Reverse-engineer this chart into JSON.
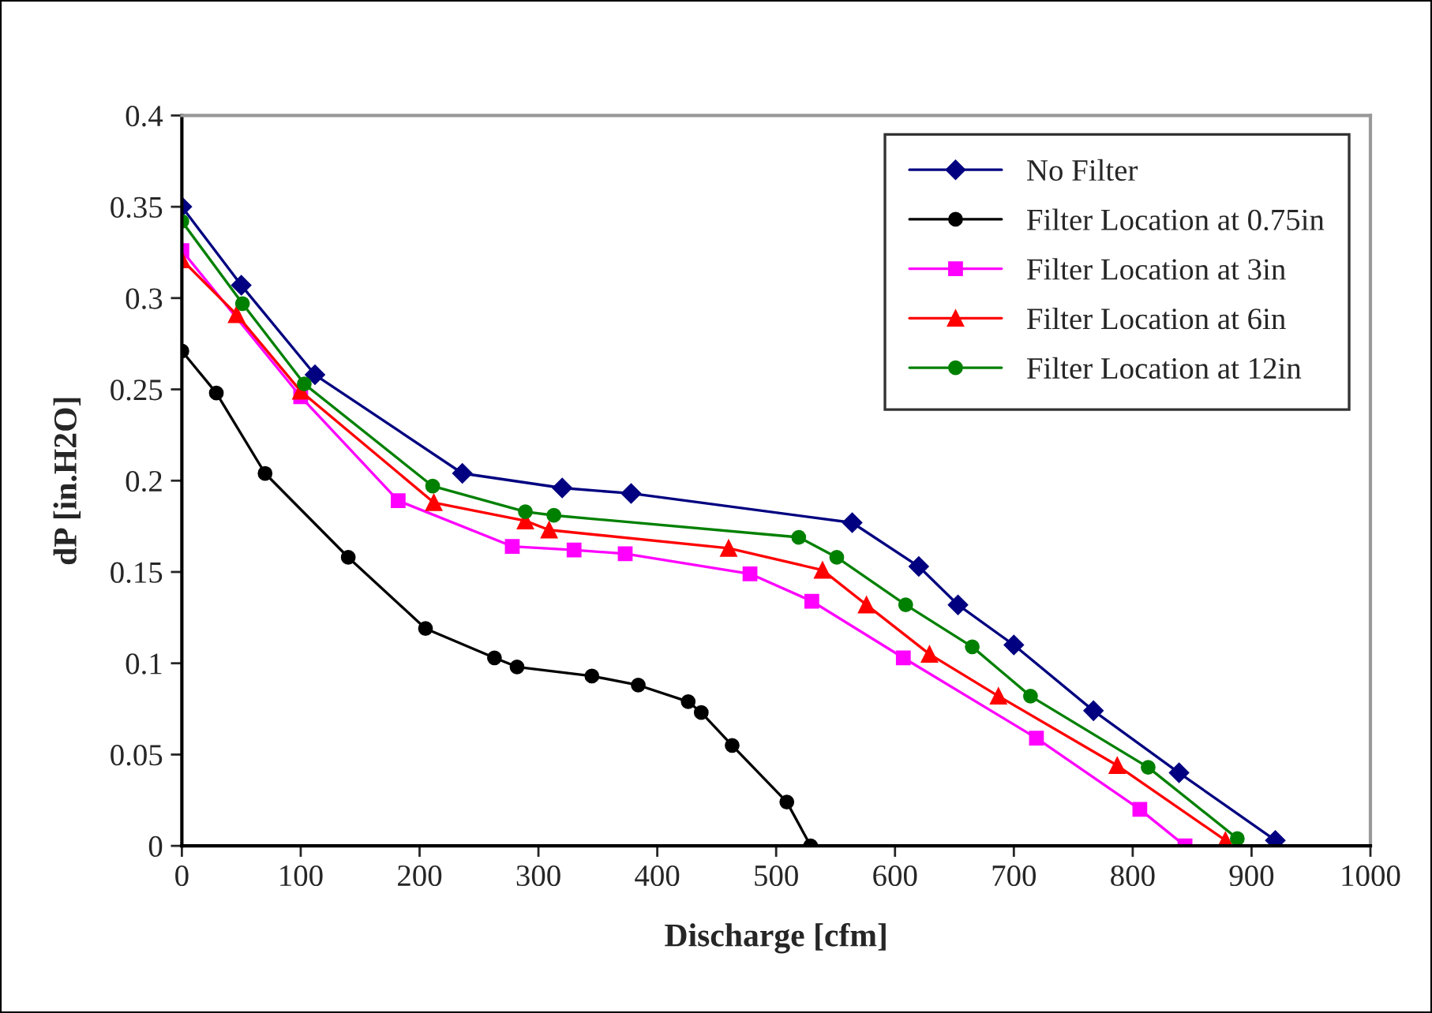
{
  "chart_data": {
    "type": "line",
    "xlabel": "Discharge [cfm]",
    "ylabel": "dP [in.H2O]",
    "xlim": [
      0,
      1000
    ],
    "xticks": [
      0,
      100,
      200,
      300,
      400,
      500,
      600,
      700,
      800,
      900,
      1000
    ],
    "ylim": [
      0,
      0.4
    ],
    "yticks": [
      0,
      0.05,
      0.1,
      0.15,
      0.2,
      0.25,
      0.3,
      0.35,
      0.4
    ],
    "grid": false,
    "legend": "top right",
    "line_style": "solid",
    "series": [
      {
        "name": "No Filter",
        "color": "#000080",
        "marker": "diamond",
        "x": [
          0,
          50,
          112,
          236,
          320,
          378,
          564,
          620,
          653,
          700,
          767,
          839,
          920
        ],
        "values": [
          0.35,
          0.307,
          0.258,
          0.204,
          0.196,
          0.193,
          0.177,
          0.153,
          0.132,
          0.11,
          0.074,
          0.04,
          0.003
        ]
      },
      {
        "name": "Filter Location at 0.75in",
        "color": "#000000",
        "marker": "circle",
        "x": [
          0,
          29,
          70,
          140,
          205,
          263,
          282,
          345,
          384,
          426,
          437,
          463,
          509,
          529
        ],
        "values": [
          0.271,
          0.248,
          0.204,
          0.158,
          0.119,
          0.103,
          0.098,
          0.093,
          0.088,
          0.079,
          0.073,
          0.055,
          0.024,
          0
        ]
      },
      {
        "name": "Filter Location at 3in",
        "color": "#ff00ff",
        "marker": "square",
        "x": [
          0,
          100,
          182,
          278,
          330,
          373,
          478,
          530,
          607,
          719,
          806,
          844
        ],
        "values": [
          0.326,
          0.246,
          0.189,
          0.164,
          0.162,
          0.16,
          0.149,
          0.134,
          0.103,
          0.059,
          0.02,
          0
        ]
      },
      {
        "name": "Filter Location at 6in",
        "color": "#ff0000",
        "marker": "triangle",
        "x": [
          0,
          46,
          100,
          212,
          289,
          309,
          460,
          539,
          576,
          629,
          687,
          787,
          878
        ],
        "values": [
          0.321,
          0.291,
          0.249,
          0.188,
          0.178,
          0.173,
          0.163,
          0.151,
          0.132,
          0.105,
          0.082,
          0.044,
          0.003
        ]
      },
      {
        "name": "Filter Location at 12in",
        "color": "#008000",
        "marker": "circle",
        "x": [
          0,
          51,
          103,
          211,
          289,
          313,
          519,
          551,
          609,
          665,
          714,
          813,
          888
        ],
        "values": [
          0.342,
          0.297,
          0.253,
          0.197,
          0.183,
          0.181,
          0.169,
          0.158,
          0.132,
          0.109,
          0.082,
          0.043,
          0.004
        ]
      }
    ]
  }
}
